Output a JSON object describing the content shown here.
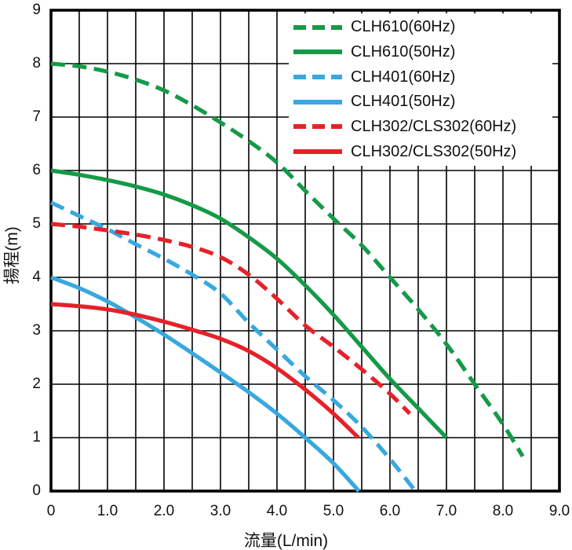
{
  "chart_data": {
    "type": "line",
    "title": "",
    "xlabel": "流量(L/min)",
    "ylabel": "揚程(m)",
    "xlim": [
      0,
      9
    ],
    "ylim": [
      0,
      9
    ],
    "x_tick_values": [
      0,
      1,
      2,
      3,
      4,
      5,
      6,
      7,
      8,
      9
    ],
    "x_tick_labels": [
      "0",
      "1.0",
      "2.0",
      "3.0",
      "4.0",
      "5.0",
      "6.0",
      "7.0",
      "8.0",
      "9.0"
    ],
    "y_tick_values": [
      0,
      1,
      2,
      3,
      4,
      5,
      6,
      7,
      8,
      9
    ],
    "y_tick_labels": [
      "0",
      "1",
      "2",
      "3",
      "4",
      "5",
      "6",
      "7",
      "8",
      "9"
    ],
    "x_grid_step": 0.5,
    "y_grid_step": 1.0,
    "grid": true,
    "grid_color": "#000000",
    "border_color": "#000000",
    "legend_position": "top-right",
    "series": [
      {
        "name": "CLH610(60Hz)",
        "color": "#159a48",
        "style": "dashed",
        "points": [
          [
            0,
            8.0
          ],
          [
            0.5,
            7.95
          ],
          [
            1,
            7.85
          ],
          [
            1.5,
            7.7
          ],
          [
            2,
            7.5
          ],
          [
            2.5,
            7.22
          ],
          [
            3,
            6.9
          ],
          [
            3.5,
            6.55
          ],
          [
            4,
            6.15
          ],
          [
            4.5,
            5.62
          ],
          [
            5,
            5.1
          ],
          [
            5.5,
            4.6
          ],
          [
            6,
            4.0
          ],
          [
            6.5,
            3.4
          ],
          [
            7,
            2.75
          ],
          [
            7.5,
            2.0
          ],
          [
            8,
            1.25
          ],
          [
            8.35,
            0.65
          ]
        ]
      },
      {
        "name": "CLH610(50Hz)",
        "color": "#159a48",
        "style": "solid",
        "points": [
          [
            0,
            6.0
          ],
          [
            0.5,
            5.92
          ],
          [
            1,
            5.82
          ],
          [
            1.5,
            5.7
          ],
          [
            2,
            5.55
          ],
          [
            2.5,
            5.35
          ],
          [
            3,
            5.1
          ],
          [
            3.5,
            4.75
          ],
          [
            4,
            4.35
          ],
          [
            4.5,
            3.85
          ],
          [
            5,
            3.3
          ],
          [
            5.5,
            2.7
          ],
          [
            6,
            2.1
          ],
          [
            6.5,
            1.55
          ],
          [
            7,
            1.0
          ]
        ]
      },
      {
        "name": "CLH401(60Hz)",
        "color": "#38a8e0",
        "style": "dashed",
        "points": [
          [
            0,
            5.4
          ],
          [
            0.5,
            5.15
          ],
          [
            1,
            4.9
          ],
          [
            1.5,
            4.62
          ],
          [
            2,
            4.35
          ],
          [
            2.5,
            4.05
          ],
          [
            3,
            3.7
          ],
          [
            3.5,
            3.15
          ],
          [
            4,
            2.65
          ],
          [
            4.5,
            2.15
          ],
          [
            5,
            1.7
          ],
          [
            5.5,
            1.2
          ],
          [
            6,
            0.6
          ],
          [
            6.45,
            0
          ]
        ]
      },
      {
        "name": "CLH401(50Hz)",
        "color": "#38a8e0",
        "style": "solid",
        "points": [
          [
            0,
            4.0
          ],
          [
            0.5,
            3.8
          ],
          [
            1,
            3.55
          ],
          [
            1.5,
            3.25
          ],
          [
            2,
            2.93
          ],
          [
            2.5,
            2.58
          ],
          [
            3,
            2.22
          ],
          [
            3.5,
            1.85
          ],
          [
            4,
            1.45
          ],
          [
            4.5,
            1.0
          ],
          [
            5,
            0.52
          ],
          [
            5.45,
            0
          ]
        ]
      },
      {
        "name": "CLH302/CLS302(60Hz)",
        "color": "#e62129",
        "style": "dashed",
        "points": [
          [
            0,
            5.0
          ],
          [
            0.5,
            4.95
          ],
          [
            1,
            4.88
          ],
          [
            1.5,
            4.8
          ],
          [
            2,
            4.7
          ],
          [
            2.5,
            4.57
          ],
          [
            3,
            4.38
          ],
          [
            3.5,
            4.05
          ],
          [
            4,
            3.6
          ],
          [
            4.5,
            3.1
          ],
          [
            5,
            2.7
          ],
          [
            5.5,
            2.28
          ],
          [
            6,
            1.82
          ],
          [
            6.35,
            1.45
          ]
        ]
      },
      {
        "name": "CLH302/CLS302(50Hz)",
        "color": "#e62129",
        "style": "solid",
        "points": [
          [
            0,
            3.5
          ],
          [
            0.5,
            3.46
          ],
          [
            1,
            3.4
          ],
          [
            1.5,
            3.3
          ],
          [
            2,
            3.17
          ],
          [
            2.5,
            3.02
          ],
          [
            3,
            2.85
          ],
          [
            3.5,
            2.62
          ],
          [
            4,
            2.3
          ],
          [
            4.5,
            1.9
          ],
          [
            5,
            1.45
          ],
          [
            5.44,
            1.0
          ]
        ]
      }
    ]
  }
}
